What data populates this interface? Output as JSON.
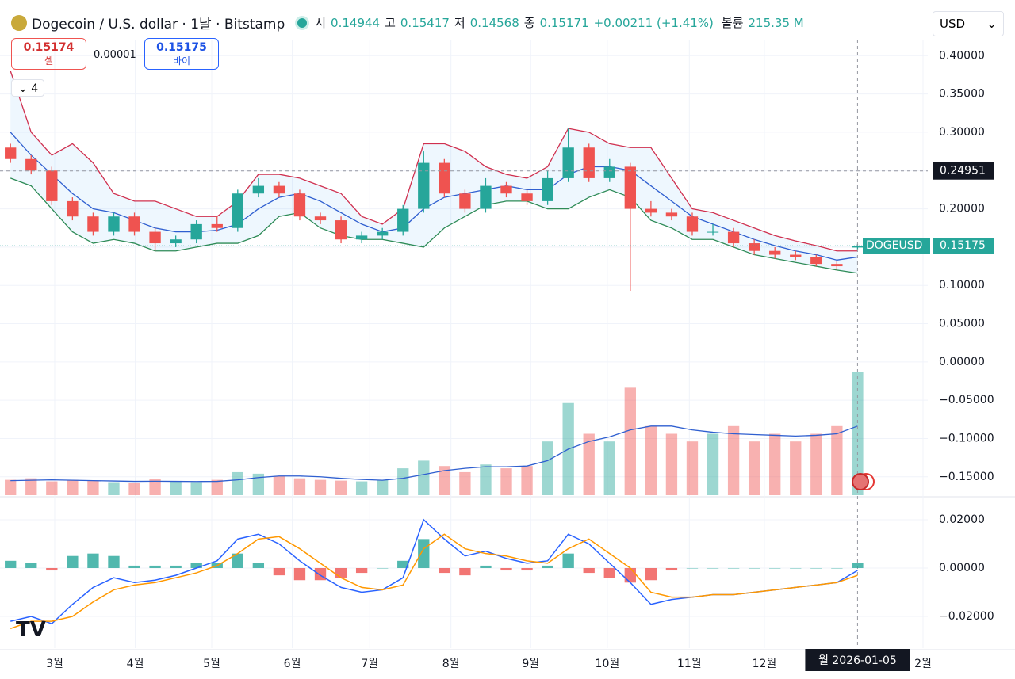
{
  "header": {
    "title": "Dogecoin / U.S. dollar · 1날 · Bitstamp",
    "open_label": "시",
    "open": 0.14944,
    "high_label": "고",
    "high": 0.15417,
    "low_label": "저",
    "low": 0.14568,
    "close_label": "종",
    "close": 0.15171,
    "change": "+0.00211 (+1.41%)",
    "volume_label": "볼륨",
    "volume": "215.35 M"
  },
  "trade": {
    "sell": 0.15174,
    "sell_label": "셀",
    "spread": 1e-05,
    "buy": 0.15175,
    "buy_label": "바이"
  },
  "indicators_collapsed": "4",
  "currency": "USD",
  "chart_data": [
    {
      "type": "candlestick",
      "symbol": "DOGEUSD",
      "last_price": 0.15175,
      "crosshair_price": 0.24951,
      "crosshair_date": "월 2026-01-05",
      "crosshair_index": 41,
      "up_color": "#26a69a",
      "down_color": "#ef5350",
      "xlim": [
        -0.2,
        44.4
      ],
      "xticks": [
        {
          "value": 2.14,
          "label": "3월"
        },
        {
          "value": 6.04,
          "label": "4월"
        },
        {
          "value": 9.74,
          "label": "5월"
        },
        {
          "value": 13.64,
          "label": "6월"
        },
        {
          "value": 17.39,
          "label": "7월"
        },
        {
          "value": 21.32,
          "label": "8월"
        },
        {
          "value": 25.18,
          "label": "9월"
        },
        {
          "value": 28.89,
          "label": "10월"
        },
        {
          "value": 32.86,
          "label": "11월"
        },
        {
          "value": 36.49,
          "label": "12월"
        },
        {
          "value": 44.17,
          "label": "2월"
        }
      ],
      "ylim": [
        -0.174,
        0.421
      ],
      "yticks": [
        {
          "value": 0.4,
          "label": "0.40000"
        },
        {
          "value": 0.35,
          "label": "0.35000"
        },
        {
          "value": 0.3,
          "label": "0.30000"
        },
        {
          "value": 0.25,
          "label": "0.25000"
        },
        {
          "value": 0.2,
          "label": "0.20000"
        },
        {
          "value": 0.15,
          "label": "0.15000"
        },
        {
          "value": 0.1,
          "label": "0.10000"
        },
        {
          "value": 0.05,
          "label": "0.05000"
        },
        {
          "value": 0,
          "label": "0.00000"
        },
        {
          "value": -0.05,
          "label": "−0.05000"
        },
        {
          "value": -0.1,
          "label": "−0.10000"
        },
        {
          "value": -0.15,
          "label": "−0.15000"
        }
      ],
      "open": [
        0.28,
        0.265,
        0.25,
        0.21,
        0.19,
        0.17,
        0.19,
        0.17,
        0.155,
        0.16,
        0.18,
        0.175,
        0.22,
        0.23,
        0.22,
        0.19,
        0.185,
        0.16,
        0.165,
        0.17,
        0.2,
        0.26,
        0.22,
        0.2,
        0.23,
        0.22,
        0.21,
        0.24,
        0.28,
        0.24,
        0.255,
        0.2,
        0.195,
        0.19,
        0.17,
        0.17,
        0.155,
        0.145,
        0.14,
        0.137,
        0.128,
        0.14944
      ],
      "high": [
        0.285,
        0.27,
        0.255,
        0.215,
        0.195,
        0.195,
        0.195,
        0.175,
        0.165,
        0.185,
        0.19,
        0.225,
        0.24,
        0.235,
        0.225,
        0.195,
        0.19,
        0.17,
        0.175,
        0.205,
        0.275,
        0.265,
        0.225,
        0.24,
        0.235,
        0.225,
        0.25,
        0.305,
        0.285,
        0.265,
        0.26,
        0.21,
        0.2,
        0.195,
        0.18,
        0.175,
        0.16,
        0.15,
        0.145,
        0.14,
        0.132,
        0.15417
      ],
      "low": [
        0.26,
        0.245,
        0.205,
        0.185,
        0.165,
        0.165,
        0.165,
        0.145,
        0.15,
        0.155,
        0.17,
        0.17,
        0.215,
        0.215,
        0.185,
        0.18,
        0.155,
        0.155,
        0.16,
        0.165,
        0.195,
        0.215,
        0.195,
        0.195,
        0.215,
        0.205,
        0.205,
        0.235,
        0.235,
        0.235,
        0.093,
        0.19,
        0.185,
        0.165,
        0.165,
        0.15,
        0.14,
        0.135,
        0.133,
        0.125,
        0.12,
        0.14568
      ],
      "close": [
        0.265,
        0.25,
        0.21,
        0.19,
        0.17,
        0.19,
        0.17,
        0.155,
        0.16,
        0.18,
        0.175,
        0.22,
        0.23,
        0.22,
        0.19,
        0.185,
        0.16,
        0.165,
        0.17,
        0.2,
        0.26,
        0.22,
        0.2,
        0.23,
        0.22,
        0.21,
        0.24,
        0.28,
        0.24,
        0.255,
        0.2,
        0.195,
        0.19,
        0.17,
        0.17,
        0.155,
        0.145,
        0.14,
        0.137,
        0.128,
        0.125,
        0.15171
      ],
      "bollinger": {
        "upper_color": "#d0304f",
        "middle_color": "#2f5fd0",
        "lower_color": "#2e8b57",
        "fill": "rgba(33,150,243,0.08)",
        "upper": [
          0.38,
          0.3,
          0.27,
          0.285,
          0.26,
          0.22,
          0.21,
          0.21,
          0.2,
          0.19,
          0.19,
          0.21,
          0.245,
          0.245,
          0.24,
          0.23,
          0.22,
          0.19,
          0.18,
          0.2,
          0.285,
          0.285,
          0.275,
          0.255,
          0.245,
          0.24,
          0.255,
          0.305,
          0.3,
          0.285,
          0.28,
          0.28,
          0.24,
          0.2,
          0.195,
          0.185,
          0.175,
          0.165,
          0.158,
          0.152,
          0.145,
          0.145
        ],
        "middle": [
          0.3,
          0.27,
          0.245,
          0.22,
          0.2,
          0.195,
          0.185,
          0.175,
          0.17,
          0.17,
          0.172,
          0.18,
          0.2,
          0.215,
          0.22,
          0.21,
          0.195,
          0.18,
          0.17,
          0.175,
          0.2,
          0.215,
          0.22,
          0.225,
          0.23,
          0.225,
          0.225,
          0.245,
          0.255,
          0.255,
          0.25,
          0.23,
          0.21,
          0.19,
          0.18,
          0.17,
          0.16,
          0.152,
          0.145,
          0.14,
          0.133,
          0.137
        ],
        "lower": [
          0.24,
          0.23,
          0.2,
          0.17,
          0.155,
          0.16,
          0.155,
          0.145,
          0.145,
          0.15,
          0.155,
          0.155,
          0.165,
          0.19,
          0.195,
          0.175,
          0.165,
          0.16,
          0.16,
          0.155,
          0.15,
          0.175,
          0.19,
          0.205,
          0.21,
          0.21,
          0.2,
          0.2,
          0.215,
          0.225,
          0.215,
          0.185,
          0.175,
          0.16,
          0.16,
          0.15,
          0.14,
          0.135,
          0.13,
          0.125,
          0.12,
          0.116
        ]
      },
      "volume": {
        "ma_color": "#2f5fd0",
        "values": [
          200,
          220,
          180,
          200,
          190,
          170,
          160,
          210,
          180,
          170,
          200,
          300,
          280,
          250,
          220,
          200,
          190,
          180,
          200,
          350,
          450,
          380,
          300,
          400,
          350,
          380,
          700,
          1200,
          800,
          700,
          1400,
          900,
          800,
          700,
          800,
          900,
          700,
          800,
          700,
          800,
          900,
          1600
        ],
        "ma": [
          190,
          195,
          200,
          195,
          190,
          185,
          180,
          182,
          180,
          178,
          180,
          200,
          230,
          250,
          250,
          240,
          220,
          205,
          195,
          220,
          270,
          320,
          350,
          370,
          370,
          380,
          450,
          600,
          700,
          760,
          850,
          900,
          900,
          850,
          820,
          800,
          790,
          780,
          770,
          780,
          800,
          900
        ]
      }
    },
    {
      "type": "line",
      "ylim": [
        -0.0331,
        0.0285
      ],
      "yticks": [
        {
          "value": 0.02,
          "label": "0.02000"
        },
        {
          "value": 0,
          "label": "0.00000"
        },
        {
          "value": -0.02,
          "label": "−0.02000"
        }
      ],
      "series": [
        {
          "color": "#2962ff",
          "values": [
            -0.022,
            -0.02,
            -0.023,
            -0.015,
            -0.008,
            -0.004,
            -0.006,
            -0.005,
            -0.003,
            0,
            0.003,
            0.012,
            0.014,
            0.01,
            0.003,
            -0.003,
            -0.008,
            -0.01,
            -0.009,
            -0.004,
            0.02,
            0.012,
            0.005,
            0.007,
            0.004,
            0.002,
            0.003,
            0.014,
            0.01,
            0.002,
            -0.006,
            -0.015,
            -0.013,
            -0.012,
            -0.011,
            -0.011,
            -0.01,
            -0.009,
            -0.008,
            -0.007,
            -0.006,
            -0.001
          ]
        },
        {
          "color": "#ff9800",
          "values": [
            -0.025,
            -0.022,
            -0.022,
            -0.02,
            -0.014,
            -0.009,
            -0.007,
            -0.006,
            -0.004,
            -0.002,
            0.001,
            0.006,
            0.012,
            0.013,
            0.008,
            0.002,
            -0.004,
            -0.008,
            -0.009,
            -0.007,
            0.008,
            0.014,
            0.008,
            0.006,
            0.005,
            0.003,
            0.002,
            0.008,
            0.012,
            0.006,
            0,
            -0.01,
            -0.012,
            -0.012,
            -0.011,
            -0.011,
            -0.01,
            -0.009,
            -0.008,
            -0.007,
            -0.006,
            -0.003
          ]
        }
      ],
      "histogram": [
        0.003,
        0.002,
        -0.001,
        0.005,
        0.006,
        0.005,
        0.001,
        0.001,
        0.001,
        0.002,
        0.002,
        0.006,
        0.002,
        -0.003,
        -0.005,
        -0.005,
        -0.004,
        -0.002,
        0,
        0.003,
        0.012,
        -0.002,
        -0.003,
        0.001,
        -0.001,
        -0.001,
        0.001,
        0.006,
        -0.002,
        -0.004,
        -0.006,
        -0.005,
        -0.001,
        0,
        0,
        0,
        0,
        0,
        0,
        0,
        0,
        0.002
      ],
      "histogram_up_color": "#26a69a",
      "histogram_down_color": "#ef5350"
    }
  ]
}
